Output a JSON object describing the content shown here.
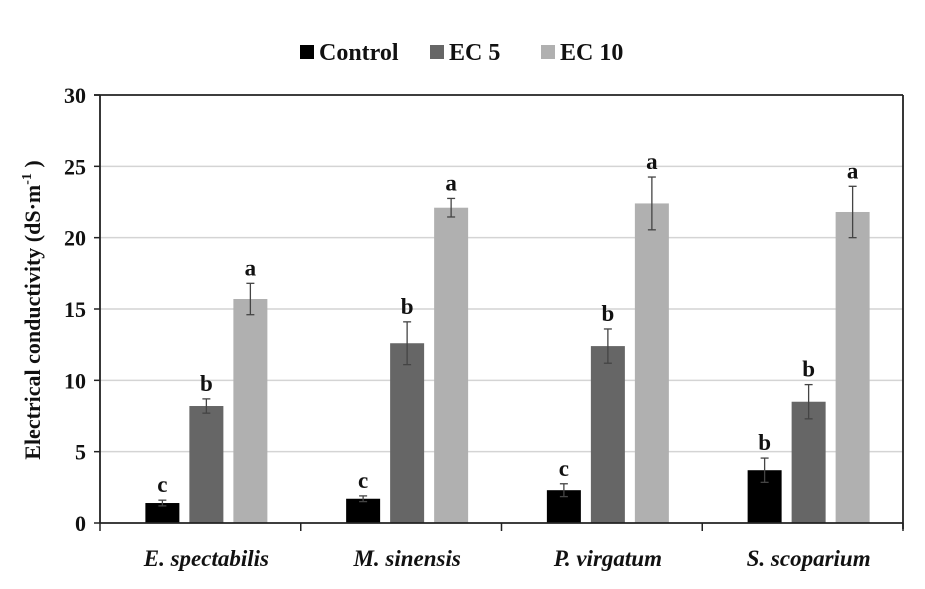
{
  "chart_data": {
    "type": "bar",
    "title": "",
    "xlabel": "",
    "ylabel": "Electrical conductivity (dS·m",
    "ylabel_superscript": "-1",
    "ylabel_suffix": " )",
    "ylim": [
      0,
      30
    ],
    "yticks": [
      0,
      5,
      10,
      15,
      20,
      25,
      30
    ],
    "grid": true,
    "legend_position": "top-center",
    "categories": [
      "E. spectabilis",
      "M. sinensis",
      "P. virgatum",
      "S. scoparium"
    ],
    "series": [
      {
        "name": "Control",
        "color": "#000000",
        "values": [
          1.4,
          1.7,
          2.3,
          3.7
        ],
        "errors": [
          0.2,
          0.2,
          0.45,
          0.85
        ],
        "letters": [
          "c",
          "c",
          "c",
          "b"
        ]
      },
      {
        "name": "EC 5",
        "color": "#666666",
        "values": [
          8.2,
          12.6,
          12.4,
          8.5
        ],
        "errors": [
          0.5,
          1.5,
          1.2,
          1.2
        ],
        "letters": [
          "b",
          "b",
          "b",
          "b"
        ]
      },
      {
        "name": "EC 10",
        "color": "#b0b0b0",
        "values": [
          15.7,
          22.1,
          22.4,
          21.8
        ],
        "errors": [
          1.1,
          0.65,
          1.85,
          1.8
        ],
        "letters": [
          "a",
          "a",
          "a",
          "a"
        ]
      }
    ]
  }
}
